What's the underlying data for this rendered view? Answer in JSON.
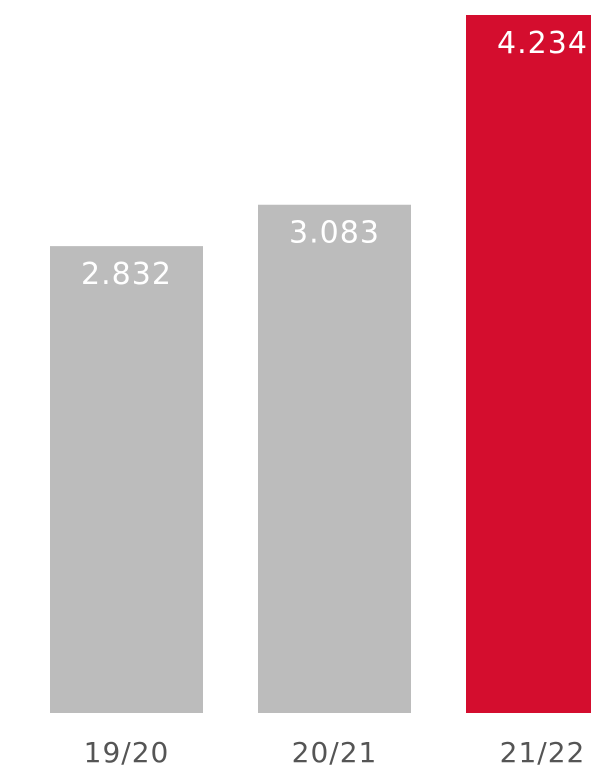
{
  "chart_data": {
    "type": "bar",
    "title": "",
    "xlabel": "",
    "ylabel": "",
    "categories": [
      "19/20",
      "20/21",
      "21/22"
    ],
    "values": [
      2832,
      3083,
      4234
    ],
    "value_labels": [
      "2.832",
      "3.083",
      "4.234"
    ],
    "ylim": [
      0,
      4234
    ],
    "grid": false,
    "colors": [
      "#bcbcbc",
      "#bcbcbc",
      "#d40d2e"
    ]
  }
}
